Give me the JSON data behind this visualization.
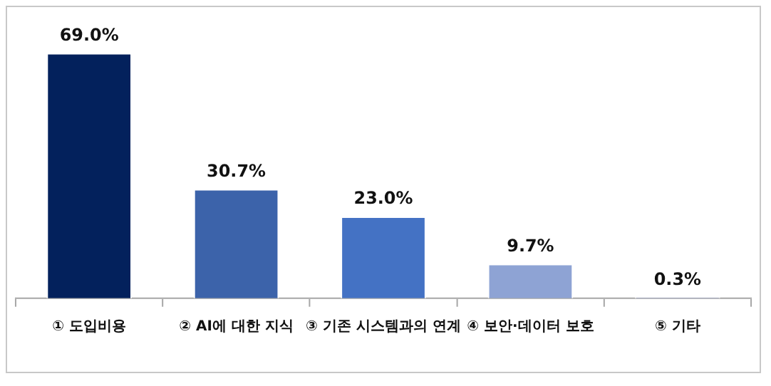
{
  "chart_data": {
    "type": "bar",
    "categories": [
      "① 도입비용",
      "② AI에 대한 지식",
      "③ 기존 시스템과의 연계",
      "④ 보안·데이터 보호",
      "⑤ 기타"
    ],
    "values": [
      69.0,
      30.7,
      23.0,
      9.7,
      0.3
    ],
    "colors": [
      "#03215c",
      "#3c63aa",
      "#4472c4",
      "#8ea3d4",
      "#a9b5d9"
    ],
    "value_labels": [
      "69.0%",
      "30.7%",
      "23.0%",
      "9.7%",
      "0.3%"
    ],
    "grid": false,
    "legend": false,
    "tick_labels": "x"
  }
}
